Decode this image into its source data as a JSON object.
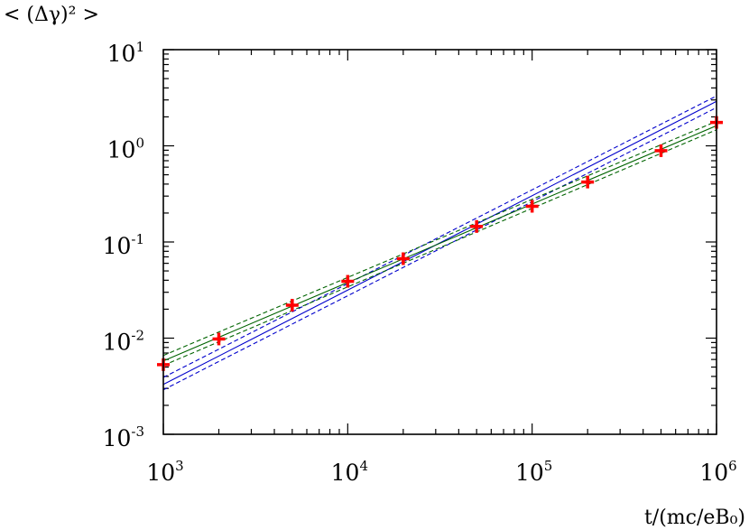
{
  "chart_data": {
    "type": "scatter",
    "x_scale": "log",
    "y_scale": "log",
    "xlim": [
      1000,
      1000000
    ],
    "ylim": [
      0.001,
      10
    ],
    "ylabel": "< (Δγ)² >",
    "xlabel": "t/(mc/eB₀)",
    "x_ticks": [
      {
        "base": "10",
        "exp": "3"
      },
      {
        "base": "10",
        "exp": "4"
      },
      {
        "base": "10",
        "exp": "5"
      },
      {
        "base": "10",
        "exp": "6"
      }
    ],
    "y_ticks": [
      {
        "base": "10",
        "exp": "-3"
      },
      {
        "base": "10",
        "exp": "-2"
      },
      {
        "base": "10",
        "exp": "-1"
      },
      {
        "base": "10",
        "exp": "0"
      },
      {
        "base": "10",
        "exp": "1"
      }
    ],
    "grid": false,
    "series": [
      {
        "kind": "points",
        "marker": "plus",
        "color": "#ff0000",
        "x": [
          1000,
          2000,
          5000,
          10000,
          20000,
          50000,
          100000,
          200000,
          500000,
          1000000
        ],
        "y": [
          0.0053,
          0.0098,
          0.022,
          0.039,
          0.067,
          0.145,
          0.235,
          0.42,
          0.89,
          1.75
        ]
      },
      {
        "kind": "fit",
        "color": "#0000cc",
        "style": "solid",
        "x": [
          1000,
          1000000
        ],
        "y": [
          0.0033,
          2.9
        ]
      },
      {
        "kind": "fit",
        "color": "#0000cc",
        "style": "dashed",
        "x": [
          1000,
          1000000
        ],
        "y": [
          0.0039,
          3.3
        ]
      },
      {
        "kind": "fit",
        "color": "#0000cc",
        "style": "dashed",
        "x": [
          1000,
          1000000
        ],
        "y": [
          0.0029,
          2.5
        ]
      },
      {
        "kind": "fit",
        "color": "#006400",
        "style": "solid",
        "x": [
          1000,
          1000000
        ],
        "y": [
          0.0058,
          1.62
        ]
      },
      {
        "kind": "fit",
        "color": "#006400",
        "style": "dashed",
        "x": [
          1000,
          1000000
        ],
        "y": [
          0.0066,
          1.8
        ]
      },
      {
        "kind": "fit",
        "color": "#006400",
        "style": "dashed",
        "x": [
          1000,
          1000000
        ],
        "y": [
          0.0052,
          1.47
        ]
      }
    ]
  }
}
